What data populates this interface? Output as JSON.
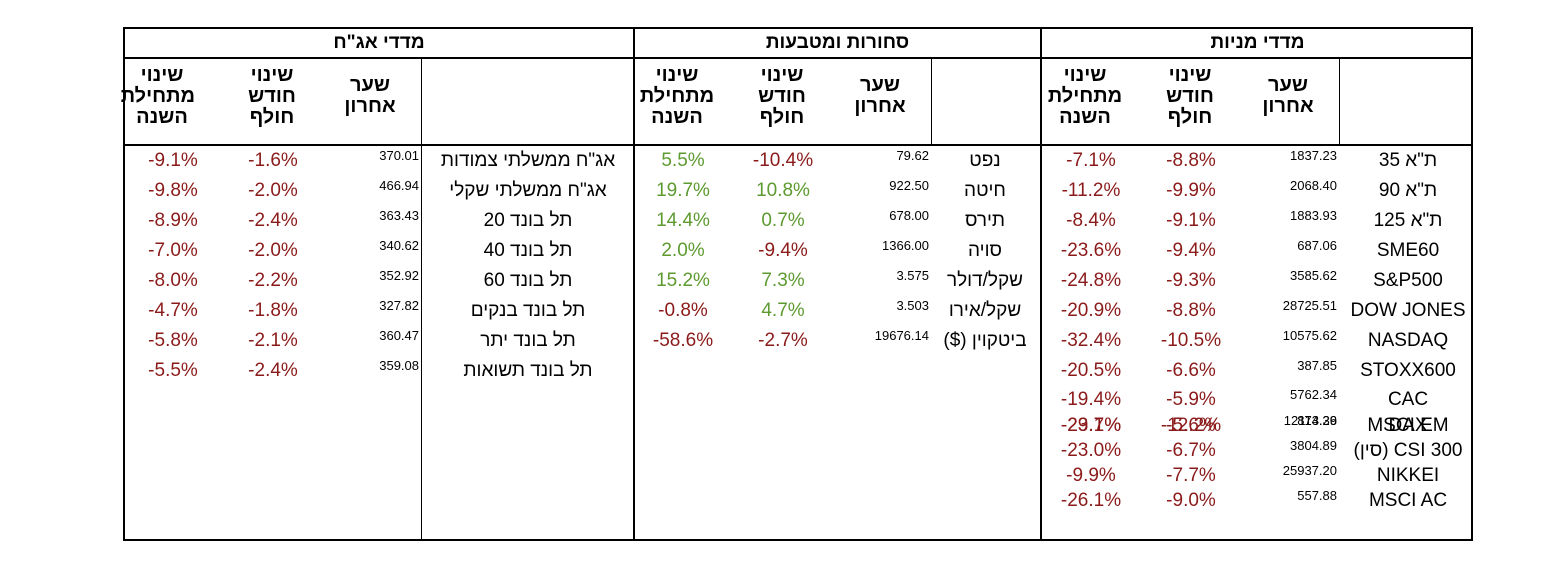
{
  "colors": {
    "negative": "#8b1a1a",
    "positive": "#5d9a2f"
  },
  "sections": {
    "stocks": "מדדי מניות",
    "commodities": "סחורות ומטבעות",
    "bonds": "מדדי אג\"ח"
  },
  "headers": {
    "last": "שער אחרון",
    "month": "שינוי חודש חולף",
    "ytd": "שינוי מתחילת השנה"
  },
  "stocks": [
    {
      "name": "ת\"א 35",
      "last": "1837.23",
      "month": "-8.8%",
      "ytd": "-7.1%"
    },
    {
      "name": "ת\"א 90",
      "last": "2068.40",
      "month": "-9.9%",
      "ytd": "-11.2%"
    },
    {
      "name": "ת\"א 125",
      "last": "1883.93",
      "month": "-9.1%",
      "ytd": "-8.4%"
    },
    {
      "name": "SME60",
      "last": "687.06",
      "month": "-9.4%",
      "ytd": "-23.6%"
    },
    {
      "name": "S&P500",
      "last": "3585.62",
      "month": "-9.3%",
      "ytd": "-24.8%"
    },
    {
      "name": "DOW JONES",
      "last": "28725.51",
      "month": "-8.8%",
      "ytd": "-20.9%"
    },
    {
      "name": "NASDAQ",
      "last": "10575.62",
      "month": "-10.5%",
      "ytd": "-32.4%"
    },
    {
      "name": "STOXX600",
      "last": "387.85",
      "month": "-6.6%",
      "ytd": "-20.5%"
    },
    {
      "name": "CAC",
      "last": "5762.34",
      "month": "-5.9%",
      "ytd": "-19.4%"
    },
    {
      "name": "DAX",
      "last": "12114.36",
      "month": "-5.6%",
      "ytd": "-23.7%"
    },
    {
      "name": "MSCI EM",
      "last": "873.29",
      "month": "-12.2%",
      "ytd": "-29.1%"
    },
    {
      "name": "CSI 300 (סין)",
      "last": "3804.89",
      "month": "-6.7%",
      "ytd": "-23.0%"
    },
    {
      "name": "NIKKEI",
      "last": "25937.20",
      "month": "-7.7%",
      "ytd": "-9.9%"
    },
    {
      "name": "MSCI AC",
      "last": "557.88",
      "month": "-9.0%",
      "ytd": "-26.1%"
    }
  ],
  "commodities": [
    {
      "name": "נפט",
      "last": "79.62",
      "month": "-10.4%",
      "ytd": "5.5%"
    },
    {
      "name": "חיטה",
      "last": "922.50",
      "month": "10.8%",
      "ytd": "19.7%"
    },
    {
      "name": "תירס",
      "last": "678.00",
      "month": "0.7%",
      "ytd": "14.4%"
    },
    {
      "name": "סויה",
      "last": "1366.00",
      "month": "-9.4%",
      "ytd": "2.0%"
    },
    {
      "name": "שקל/דולר",
      "last": "3.575",
      "month": "7.3%",
      "ytd": "15.2%"
    },
    {
      "name": "שקל/אירו",
      "last": "3.503",
      "month": "4.7%",
      "ytd": "-0.8%"
    },
    {
      "name": "ביטקוין ($)",
      "last": "19676.14",
      "month": "-2.7%",
      "ytd": "-58.6%"
    }
  ],
  "bonds": [
    {
      "name": "אג\"ח ממשלתי צמודות",
      "last": "370.01",
      "month": "-1.6%",
      "ytd": "-9.1%"
    },
    {
      "name": "אג\"ח ממשלתי שקלי",
      "last": "466.94",
      "month": "-2.0%",
      "ytd": "-9.8%"
    },
    {
      "name": "תל בונד 20",
      "last": "363.43",
      "month": "-2.4%",
      "ytd": "-8.9%"
    },
    {
      "name": "תל בונד 40",
      "last": "340.62",
      "month": "-2.0%",
      "ytd": "-7.0%"
    },
    {
      "name": "תל בונד 60",
      "last": "352.92",
      "month": "-2.2%",
      "ytd": "-8.0%"
    },
    {
      "name": "תל בונד בנקים",
      "last": "327.82",
      "month": "-1.8%",
      "ytd": "-4.7%"
    },
    {
      "name": "תל בונד יתר",
      "last": "360.47",
      "month": "-2.1%",
      "ytd": "-5.8%"
    },
    {
      "name": "תל בונד תשואות",
      "last": "359.08",
      "month": "-2.4%",
      "ytd": "-5.5%"
    }
  ]
}
